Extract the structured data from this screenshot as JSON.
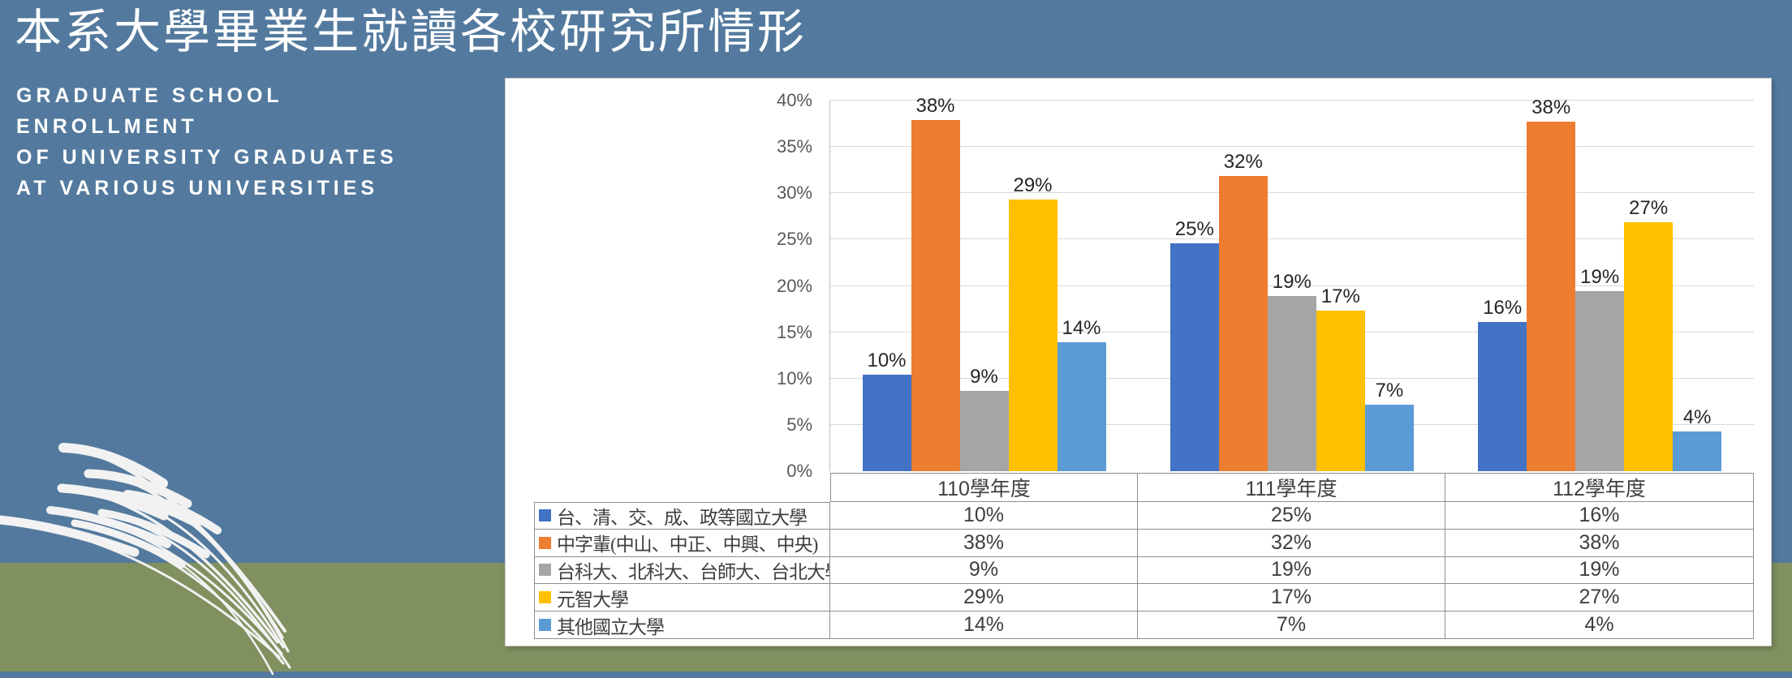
{
  "slide": {
    "title": "本系大學畢業生就讀各校研究所情形",
    "subtitle_lines": [
      "GRADUATE SCHOOL",
      "ENROLLMENT",
      "OF UNIVERSITY GRADUATES",
      "AT VARIOUS UNIVERSITIES"
    ],
    "colors": {
      "background_top": "#537A9E",
      "background_bottom": "#80905F",
      "panel": "#FFFFFF",
      "title_text": "#FFFFFF",
      "grass": "#F2F2F2"
    }
  },
  "chart_data": {
    "type": "bar",
    "title": "",
    "xlabel": "",
    "ylabel": "",
    "categories": [
      "110學年度",
      "111學年度",
      "112學年度"
    ],
    "series": [
      {
        "name": "台、清、交、成、政等國立大學",
        "color": "#4472C4",
        "values": [
          10,
          25,
          16
        ],
        "labels": [
          "10%",
          "25%",
          "16%"
        ],
        "values_precise": [
          10.4,
          24.6,
          16.1
        ]
      },
      {
        "name": "中字輩(中山、中正、中興、中央)",
        "color": "#ED7D31",
        "values": [
          38,
          32,
          38
        ],
        "labels": [
          "38%",
          "32%",
          "38%"
        ],
        "values_precise": [
          37.9,
          31.9,
          37.7
        ]
      },
      {
        "name": "台科大、北科大、台師大、台北大學",
        "color": "#A5A5A5",
        "values": [
          9,
          19,
          19
        ],
        "labels": [
          "9%",
          "19%",
          "19%"
        ],
        "values_precise": [
          8.7,
          18.9,
          19.4
        ]
      },
      {
        "name": "元智大學",
        "color": "#FFC000",
        "values": [
          29,
          17,
          27
        ],
        "labels": [
          "29%",
          "17%",
          "27%"
        ],
        "values_precise": [
          29.3,
          17.3,
          26.9
        ]
      },
      {
        "name": "其他國立大學",
        "color": "#5B9BD5",
        "values": [
          14,
          7,
          4
        ],
        "labels": [
          "14%",
          "7%",
          "4%"
        ],
        "values_precise": [
          13.9,
          7.2,
          4.3
        ]
      }
    ],
    "ylim": [
      0,
      40
    ],
    "yticks": [
      "0%",
      "5%",
      "10%",
      "15%",
      "20%",
      "25%",
      "30%",
      "35%",
      "40%"
    ],
    "grid": true,
    "legend_position": "table-below-chart"
  }
}
